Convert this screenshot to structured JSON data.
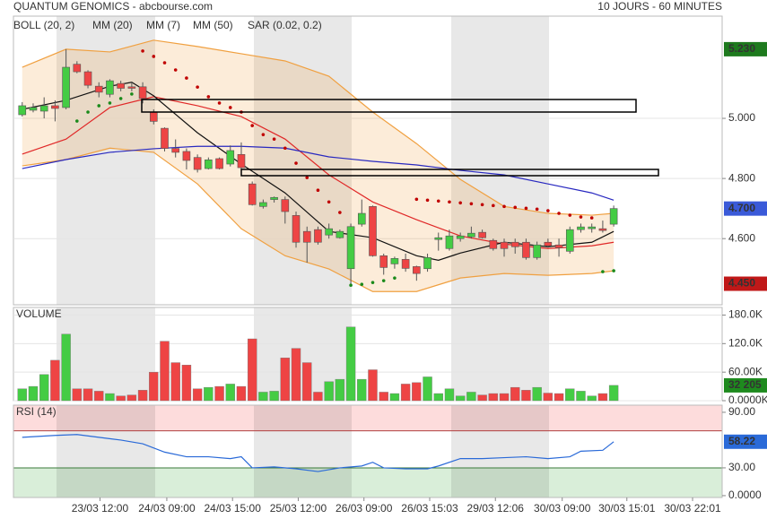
{
  "chart_data": [
    {
      "type": "candlestick",
      "title": "QUANTUM GENOMICS - abcbourse.com",
      "subtitle": "10 JOURS - 60 MINUTES",
      "open": [
        5.012,
        5.027,
        5.024,
        5.042,
        5.036,
        5.18,
        5.155,
        5.107,
        5.08,
        5.116,
        5.105,
        5.105,
        5.02,
        4.967,
        4.9,
        4.89,
        4.87,
        4.833,
        4.866,
        4.848,
        4.88,
        4.782,
        4.707,
        4.73,
        4.73,
        4.677,
        4.624,
        4.63,
        4.612,
        4.603,
        4.5,
        4.648,
        4.707,
        4.543,
        4.516,
        4.531,
        4.507,
        4.5,
        4.597,
        4.567,
        4.6,
        4.606,
        4.621,
        4.594,
        4.588,
        4.588,
        4.588,
        4.537,
        4.588,
        4.579,
        4.558,
        4.63,
        4.633,
        4.633,
        4.648
      ],
      "high": [
        5.054,
        5.05,
        5.07,
        5.06,
        5.23,
        5.19,
        5.16,
        5.12,
        5.13,
        5.125,
        5.12,
        5.12,
        5.03,
        4.97,
        4.93,
        4.9,
        4.88,
        4.87,
        4.87,
        4.91,
        4.92,
        4.79,
        4.73,
        4.74,
        4.74,
        4.69,
        4.64,
        4.64,
        4.65,
        4.63,
        4.65,
        4.73,
        4.71,
        4.55,
        4.54,
        4.55,
        4.51,
        4.55,
        4.62,
        4.63,
        4.62,
        4.64,
        4.63,
        4.6,
        4.6,
        4.6,
        4.6,
        4.59,
        4.6,
        4.6,
        4.64,
        4.65,
        4.65,
        4.66,
        4.71
      ],
      "low": [
        5.006,
        5.02,
        5.0,
        4.99,
        5.03,
        5.15,
        5.1,
        5.07,
        5.07,
        5.09,
        5.09,
        5.05,
        4.98,
        4.89,
        4.87,
        4.83,
        4.82,
        4.83,
        4.83,
        4.84,
        4.83,
        4.71,
        4.7,
        4.72,
        4.65,
        4.57,
        4.52,
        4.58,
        4.6,
        4.6,
        4.45,
        4.64,
        4.54,
        4.48,
        4.5,
        4.49,
        4.46,
        4.49,
        4.56,
        4.56,
        4.59,
        4.6,
        4.6,
        4.56,
        4.54,
        4.55,
        4.53,
        4.53,
        4.57,
        4.54,
        4.55,
        4.62,
        4.62,
        4.62,
        4.64
      ],
      "close": [
        5.042,
        5.036,
        5.042,
        5.033,
        5.17,
        5.155,
        5.11,
        5.087,
        5.125,
        5.1,
        5.1,
        5.066,
        4.99,
        4.9,
        4.887,
        4.86,
        4.83,
        4.862,
        4.833,
        4.893,
        4.836,
        4.713,
        4.72,
        4.737,
        4.69,
        4.588,
        4.588,
        4.588,
        4.633,
        4.624,
        4.64,
        4.684,
        4.543,
        4.504,
        4.534,
        4.501,
        4.484,
        4.537,
        4.603,
        4.609,
        4.609,
        4.618,
        4.603,
        4.567,
        4.567,
        4.573,
        4.537,
        4.579,
        4.576,
        4.57,
        4.63,
        4.639,
        4.639,
        4.627,
        4.7
      ],
      "up_color": "#44cc44",
      "down_color": "#ee4444",
      "xlim": [
        -0.8,
        63.9
      ],
      "ylim": [
        4.38,
        5.34
      ],
      "yticks": [
        {
          "value": 5.0,
          "label": "5.000"
        },
        {
          "value": 4.8,
          "label": "4.800"
        },
        {
          "value": 4.6,
          "label": "4.600"
        }
      ],
      "grid": true,
      "markers": [
        {
          "value": 5.23,
          "label": "5.230",
          "color": "#1e7a1e"
        },
        {
          "value": 4.7,
          "label": "4.700",
          "color": "#3a5ad8"
        },
        {
          "value": 4.45,
          "label": "4.450",
          "color": "#c01818"
        }
      ],
      "overlays": [
        {
          "type": "band",
          "name": "BOLL (20, 2)",
          "color": "#f0a040",
          "x": [
            0,
            4,
            8,
            12,
            16,
            20,
            24,
            28,
            32,
            36,
            40,
            44,
            48,
            52,
            54
          ],
          "upper": [
            5.17,
            5.23,
            5.221,
            5.26,
            5.239,
            5.215,
            5.191,
            5.14,
            5.021,
            4.916,
            4.797,
            4.707,
            4.684,
            4.678,
            4.684
          ],
          "lower": [
            4.842,
            4.863,
            4.901,
            4.887,
            4.782,
            4.633,
            4.543,
            4.499,
            4.424,
            4.424,
            4.469,
            4.484,
            4.478,
            4.484,
            4.493
          ]
        },
        {
          "type": "line",
          "name": "MM (20)",
          "color": "#e02828",
          "x": [
            0,
            4,
            8,
            12,
            16,
            20,
            24,
            28,
            32,
            36,
            40,
            44,
            48,
            52,
            54
          ],
          "values": [
            4.881,
            4.931,
            5.036,
            5.072,
            5.042,
            5.006,
            4.931,
            4.812,
            4.722,
            4.663,
            4.609,
            4.582,
            4.567,
            4.576,
            4.588
          ]
        },
        {
          "type": "line",
          "name": "MM (7)",
          "color": "#111111",
          "x": [
            0,
            4,
            8,
            10,
            12,
            16,
            20,
            24,
            28,
            32,
            36,
            38,
            40,
            44,
            48,
            52,
            54
          ],
          "values": [
            5.03,
            5.06,
            5.107,
            5.12,
            5.075,
            4.952,
            4.848,
            4.752,
            4.624,
            4.603,
            4.543,
            4.528,
            4.552,
            4.588,
            4.573,
            4.588,
            4.624
          ]
        },
        {
          "type": "line",
          "name": "MM (50)",
          "color": "#2828c0",
          "x": [
            0,
            4,
            8,
            12,
            16,
            20,
            24,
            28,
            32,
            36,
            40,
            44,
            48,
            52,
            54
          ],
          "values": [
            4.833,
            4.863,
            4.887,
            4.899,
            4.907,
            4.907,
            4.901,
            4.872,
            4.857,
            4.845,
            4.827,
            4.812,
            4.782,
            4.752,
            4.728
          ]
        },
        {
          "type": "dots",
          "name": "SAR (0.02, 0.2)",
          "color": "#c00000",
          "below_color": "#1a8a1a",
          "values": [
            null,
            null,
            null,
            null,
            null,
            4.991,
            5.021,
            5.042,
            5.051,
            5.066,
            5.081,
            5.224,
            5.206,
            5.185,
            5.161,
            5.134,
            5.104,
            5.072,
            5.051,
            5.036,
            5.021,
            4.976,
            4.946,
            4.931,
            4.901,
            4.851,
            4.803,
            4.761,
            4.722,
            4.687,
            4.445,
            4.448,
            4.454,
            4.46,
            4.469,
            null,
            4.731,
            4.728,
            4.725,
            4.722,
            4.719,
            4.716,
            4.713,
            4.71,
            4.707,
            4.704,
            4.701,
            4.698,
            4.693,
            4.684,
            4.678,
            4.672,
            4.669,
            4.49,
            4.493
          ]
        }
      ]
    },
    {
      "type": "bar",
      "title": "VOLUME",
      "values": [
        25000,
        30000,
        55000,
        85000,
        140000,
        25000,
        25000,
        20000,
        15000,
        10000,
        12000,
        22000,
        60000,
        125000,
        80000,
        75000,
        25000,
        28000,
        30000,
        35000,
        30000,
        130000,
        18000,
        20000,
        90000,
        110000,
        80000,
        18000,
        40000,
        45000,
        155000,
        45000,
        65000,
        18000,
        15000,
        35000,
        38000,
        50000,
        15000,
        25000,
        10000,
        18000,
        12000,
        15000,
        15000,
        28000,
        22000,
        28000,
        16000,
        15000,
        25000,
        20000,
        10000,
        15000,
        32205
      ],
      "xlim": [
        -0.8,
        63.9
      ],
      "ylim": [
        0,
        196000
      ],
      "yticks": [
        {
          "value": 180000,
          "label": "180.0K"
        },
        {
          "value": 120000,
          "label": "120.0K"
        },
        {
          "value": 60000,
          "label": "60.00K"
        },
        {
          "value": 0,
          "label": "0.0000K"
        }
      ],
      "grid": true,
      "markers": [
        {
          "value": 32205,
          "label": "32 205",
          "color": "#1e8a1e"
        }
      ]
    },
    {
      "type": "line",
      "title": "RSI (14)",
      "color": "#2a6ad8",
      "x": [
        0,
        3,
        5,
        7,
        9,
        11,
        13,
        15,
        17,
        19,
        20,
        21,
        23,
        25,
        27,
        29,
        31,
        32,
        33,
        35,
        37,
        38,
        40,
        42,
        44,
        46,
        48,
        50,
        51,
        53,
        54
      ],
      "values": [
        63,
        65,
        66,
        63,
        60,
        56,
        47,
        42,
        42,
        40,
        42,
        30,
        31,
        29,
        26,
        30,
        32,
        36,
        30,
        29,
        29,
        32,
        40,
        40,
        41,
        42,
        40,
        42,
        48,
        49,
        58.22
      ],
      "xlim": [
        -0.8,
        63.9
      ],
      "ylim": [
        -2,
        97.7
      ],
      "yticks": [
        {
          "value": 90,
          "label": "90.00"
        },
        {
          "value": 30,
          "label": "30.00"
        },
        {
          "value": 0,
          "label": "0.0000"
        }
      ],
      "upper_level": 70,
      "lower_level": 30,
      "markers": [
        {
          "value": 58.22,
          "label": "58.22",
          "color": "#2a6ad8"
        }
      ],
      "xticks": [
        {
          "value": 7.1,
          "label": "23/03 12:00"
        },
        {
          "value": 13.2,
          "label": "24/03 09:00"
        },
        {
          "value": 19.2,
          "label": "24/03 15:00"
        },
        {
          "value": 25.2,
          "label": "25/03 12:00"
        },
        {
          "value": 31.2,
          "label": "26/03 09:00"
        },
        {
          "value": 37.2,
          "label": "26/03 15:03"
        },
        {
          "value": 43.2,
          "label": "29/03 12:06"
        },
        {
          "value": 49.3,
          "label": "30/03 09:00"
        },
        {
          "value": 55.2,
          "label": "30/03 15:01"
        },
        {
          "value": 61.2,
          "label": "30/03 22:01"
        }
      ]
    }
  ]
}
